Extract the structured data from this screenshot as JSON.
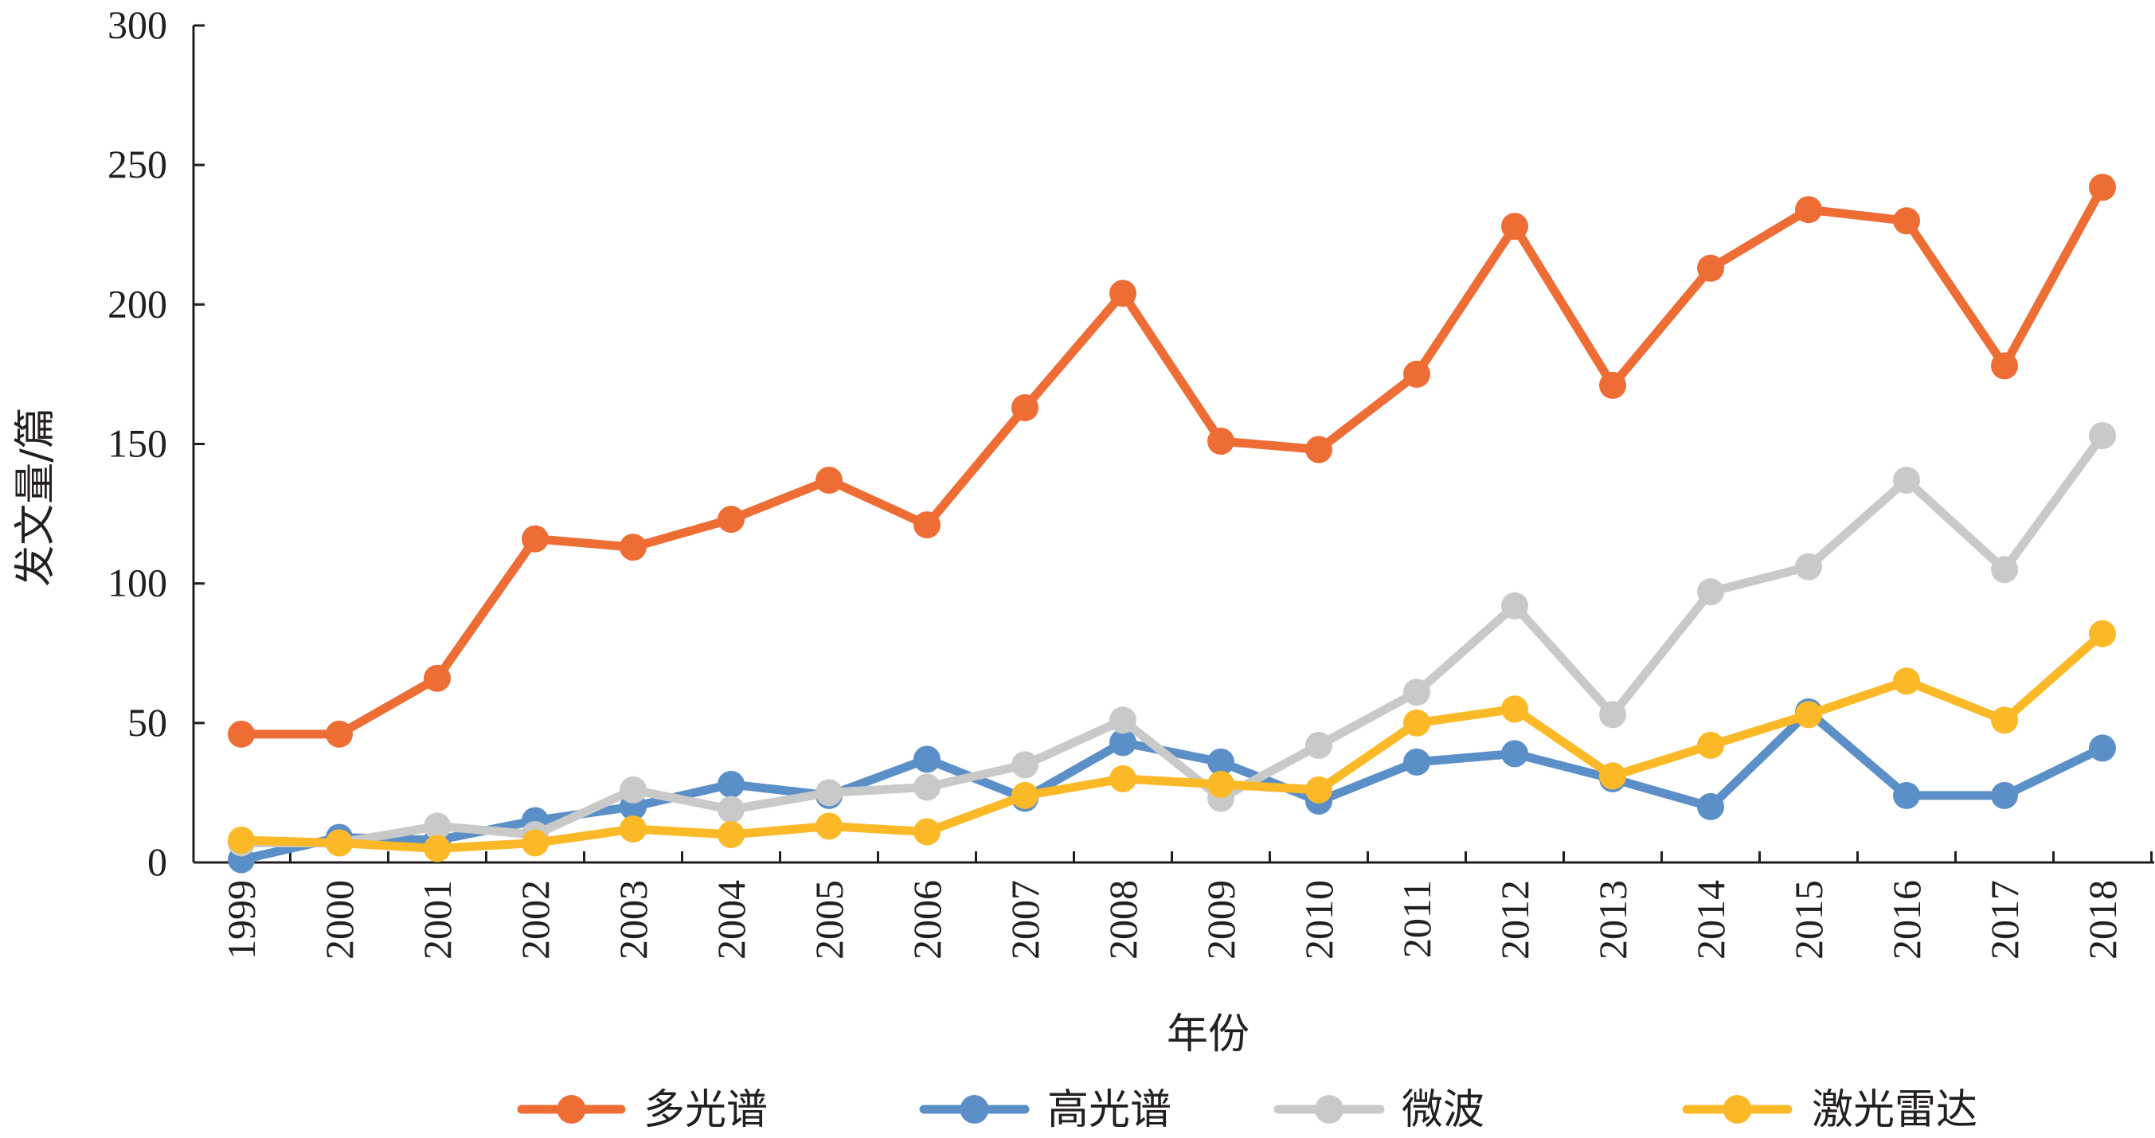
{
  "chart_data": {
    "type": "line",
    "xlabel": "年份",
    "ylabel": "发文量/篇",
    "ylim": [
      0,
      300
    ],
    "yticks": [
      "0",
      "50",
      "100",
      "150",
      "200",
      "250",
      "300"
    ],
    "categories": [
      "1999",
      "2000",
      "2001",
      "2002",
      "2003",
      "2004",
      "2005",
      "2006",
      "2007",
      "2008",
      "2009",
      "2010",
      "2011",
      "2012",
      "2013",
      "2014",
      "2015",
      "2016",
      "2017",
      "2018"
    ],
    "grid": false,
    "legend_position": "bottom",
    "series": [
      {
        "name": "多光谱",
        "color": "#ed6d35",
        "values": [
          46,
          46,
          66,
          116,
          113,
          123,
          137,
          121,
          163,
          204,
          151,
          148,
          175,
          228,
          171,
          213,
          234,
          230,
          178,
          242
        ]
      },
      {
        "name": "高光谱",
        "color": "#5b8fc7",
        "values": [
          1,
          9,
          8,
          15,
          20,
          28,
          24,
          37,
          23,
          43,
          36,
          22,
          36,
          39,
          30,
          20,
          54,
          24,
          24,
          41
        ]
      },
      {
        "name": "微波",
        "color": "#c9c9c9",
        "values": [
          7,
          7,
          13,
          10,
          26,
          19,
          25,
          27,
          35,
          51,
          23,
          42,
          61,
          92,
          53,
          97,
          106,
          137,
          105,
          153
        ]
      },
      {
        "name": "激光雷达",
        "color": "#fbb927",
        "values": [
          8,
          7,
          5,
          7,
          12,
          10,
          13,
          11,
          24,
          30,
          28,
          26,
          50,
          55,
          31,
          42,
          53,
          65,
          51,
          82
        ]
      }
    ]
  }
}
